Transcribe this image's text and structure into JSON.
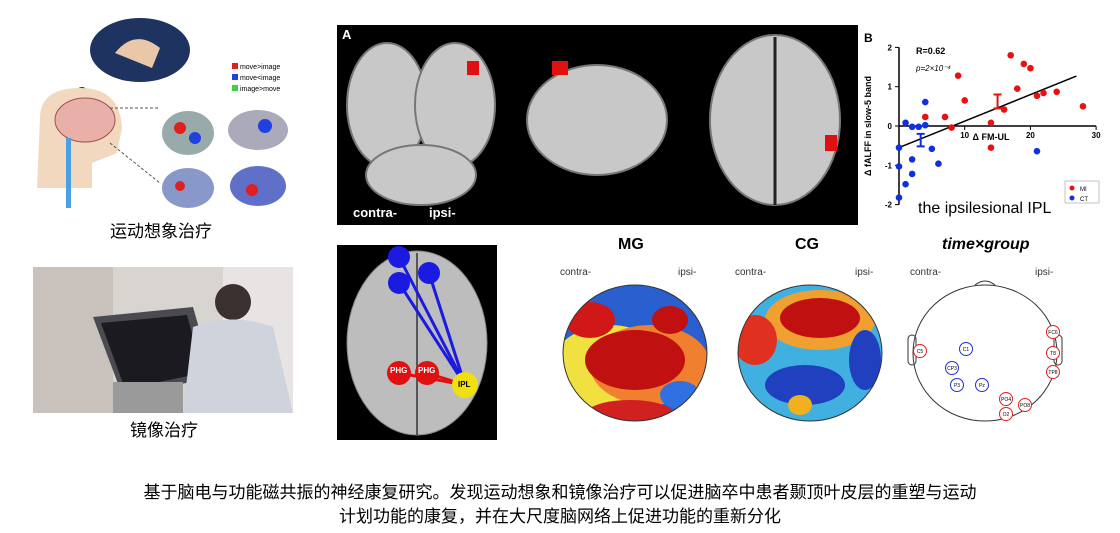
{
  "left_top": {
    "label": "运动想象治疗",
    "legend": [
      {
        "text": "move>image",
        "color": "#e02020"
      },
      {
        "text": "move<image",
        "color": "#2040e0"
      },
      {
        "text": "image>move",
        "color": "#40d040"
      }
    ]
  },
  "left_bottom": {
    "label": "镜像治疗"
  },
  "panel_a": {
    "letter": "A",
    "contra": "contra-",
    "ipsi": "ipsi-"
  },
  "connectivity": {
    "nodes": [
      "PHG",
      "PHG",
      "IPL"
    ]
  },
  "topomaps": [
    {
      "title": "MG",
      "contra": "contra-",
      "ipsi": "ipsi-"
    },
    {
      "title": "CG",
      "contra": "contra-",
      "ipsi": "ipsi-"
    },
    {
      "title": "time×group",
      "contra": "contra-",
      "ipsi": "ipsi-",
      "electrodes_red": [
        "C5",
        "FC6",
        "T8",
        "TP8",
        "PO4",
        "PO8",
        "O2"
      ],
      "electrodes_blue": [
        "C1",
        "CP3",
        "P3",
        "Pz"
      ]
    }
  ],
  "chart_data": {
    "type": "scatter",
    "letter": "B",
    "xlabel": "Δ FM-UL",
    "ylabel": "Δ fALFF in slow-5 band",
    "xlim": [
      0,
      30
    ],
    "ylim": [
      -2,
      2
    ],
    "xticks": [
      "10",
      "20",
      "30"
    ],
    "yticks": [
      "2",
      "1",
      "0",
      "-1",
      "-2"
    ],
    "annotations": [
      "R=0.62",
      "p=2×10⁻⁴"
    ],
    "subtitle": "the ipsilesional IPL",
    "regression": {
      "x": [
        0,
        27
      ],
      "y": [
        -0.55,
        1.27
      ]
    },
    "series": [
      {
        "name": "MI",
        "color": "#e81010",
        "x": [
          4,
          7,
          8,
          9,
          10,
          14,
          14,
          16,
          17,
          18,
          19,
          20,
          21,
          22,
          24,
          28
        ],
        "y": [
          0.23,
          0.23,
          -0.04,
          1.28,
          0.65,
          0.08,
          -0.55,
          0.42,
          1.8,
          0.95,
          1.58,
          1.47,
          0.77,
          0.84,
          0.87,
          0.5
        ],
        "errorbar": {
          "x": 15,
          "mean": 0.6,
          "low": 0.45,
          "high": 0.8
        }
      },
      {
        "name": "CT",
        "color": "#1030e0",
        "x": [
          0,
          0,
          0,
          1,
          1,
          2,
          2,
          2,
          3,
          4,
          4,
          5,
          6,
          21
        ],
        "y": [
          -0.55,
          -1.03,
          -1.82,
          0.08,
          -1.48,
          -0.02,
          -0.85,
          -1.22,
          -0.02,
          0.61,
          0.02,
          -0.58,
          -0.96,
          -0.64
        ],
        "errorbar": {
          "x": 3.3,
          "mean": -0.35,
          "low": -0.52,
          "high": -0.2
        }
      }
    ]
  },
  "caption": {
    "line1": "基于脑电与功能磁共振的神经康复研究。发现运动想象和镜像治疗可以促进脑卒中患者颞顶叶皮层的重塑与运动",
    "line2": "计划功能的康复，并在大尺度脑网络上促进功能的重新分化"
  }
}
